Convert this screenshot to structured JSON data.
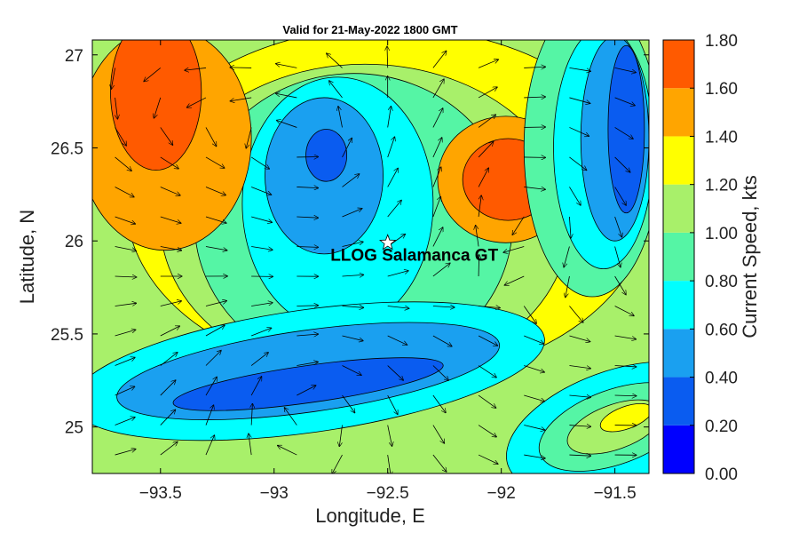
{
  "chart_data": {
    "type": "heatmap",
    "title": "Valid for 21-May-2022 1800 GMT",
    "xlabel": "Longitude, E",
    "ylabel": "Latitude, N",
    "colorbar_label": "Current Speed, kts",
    "xlim": [
      -93.8,
      -91.35
    ],
    "ylim": [
      24.75,
      27.08
    ],
    "x_ticks": [
      -93.5,
      -93,
      -92.5,
      -92,
      -91.5
    ],
    "x_tick_labels": [
      "−93.5",
      "−93",
      "−92.5",
      "−92",
      "−91.5"
    ],
    "y_ticks": [
      25,
      25.5,
      26,
      26.5,
      27
    ],
    "y_tick_labels": [
      "25",
      "25.5",
      "26",
      "26.5",
      "27"
    ],
    "colorbar": {
      "levels": [
        0,
        0.2,
        0.4,
        0.6,
        0.8,
        1.0,
        1.2,
        1.4,
        1.6,
        1.8
      ],
      "labels": [
        "0.00",
        "0.20",
        "0.40",
        "0.60",
        "0.80",
        "1.00",
        "1.20",
        "1.40",
        "1.60",
        "1.80"
      ],
      "colors": [
        "#0000ff",
        "#0a5cf0",
        "#1aa0f0",
        "#00ffff",
        "#55f5a5",
        "#a8f06a",
        "#ffff00",
        "#ffa500",
        "#ff5a00"
      ]
    },
    "site": {
      "name": "LLOG Salamanca GT",
      "lon": -92.5,
      "lat": 25.99
    },
    "regions": [
      {
        "level": 1.2,
        "cx": -92.5,
        "cy": 26.2,
        "rx": 1.15,
        "ry": 0.95
      },
      {
        "level": 1.0,
        "cx": -92.6,
        "cy": 26.1,
        "rx": 0.9,
        "ry": 0.85
      },
      {
        "level": 0.8,
        "cx": -92.65,
        "cy": 26.1,
        "rx": 0.7,
        "ry": 0.8
      },
      {
        "level": 0.6,
        "cx": -92.72,
        "cy": 26.2,
        "rx": 0.42,
        "ry": 0.68
      },
      {
        "level": 0.4,
        "cx": -92.78,
        "cy": 26.35,
        "rx": 0.26,
        "ry": 0.42
      },
      {
        "level": 0.2,
        "cx": -92.77,
        "cy": 26.46,
        "rx": 0.09,
        "ry": 0.14
      },
      {
        "level": 1.4,
        "cx": -91.98,
        "cy": 26.33,
        "rx": 0.3,
        "ry": 0.34
      },
      {
        "level": 1.6,
        "cx": -91.97,
        "cy": 26.33,
        "rx": 0.2,
        "ry": 0.22
      },
      {
        "level": 1.4,
        "cx": -93.48,
        "cy": 26.55,
        "rx": 0.38,
        "ry": 0.6
      },
      {
        "level": 1.6,
        "cx": -93.52,
        "cy": 26.8,
        "rx": 0.2,
        "ry": 0.42
      },
      {
        "level": 0.8,
        "cx": -91.6,
        "cy": 26.5,
        "rx": 0.3,
        "ry": 0.8
      },
      {
        "level": 0.6,
        "cx": -91.55,
        "cy": 26.5,
        "rx": 0.22,
        "ry": 0.65
      },
      {
        "level": 0.4,
        "cx": -91.5,
        "cy": 26.55,
        "rx": 0.15,
        "ry": 0.55
      },
      {
        "level": 0.2,
        "cx": -91.45,
        "cy": 26.6,
        "rx": 0.08,
        "ry": 0.45
      },
      {
        "level": 0.6,
        "cx": -92.85,
        "cy": 25.3,
        "rx": 1.05,
        "ry": 0.33,
        "rot": -8
      },
      {
        "level": 0.4,
        "cx": -92.85,
        "cy": 25.3,
        "rx": 0.85,
        "ry": 0.22,
        "rot": -8
      },
      {
        "level": 0.2,
        "cx": -92.85,
        "cy": 25.23,
        "rx": 0.6,
        "ry": 0.1,
        "rot": -8
      },
      {
        "level": 0.6,
        "cx": -91.5,
        "cy": 25.0,
        "rx": 0.5,
        "ry": 0.3,
        "rot": -20
      },
      {
        "level": 0.8,
        "cx": -91.5,
        "cy": 25.0,
        "rx": 0.35,
        "ry": 0.2,
        "rot": -20
      },
      {
        "level": 1.0,
        "cx": -91.5,
        "cy": 25.0,
        "rx": 0.22,
        "ry": 0.12,
        "rot": -20
      },
      {
        "level": 1.2,
        "cx": -91.45,
        "cy": 25.05,
        "rx": 0.12,
        "ry": 0.06,
        "rot": -20
      }
    ]
  }
}
